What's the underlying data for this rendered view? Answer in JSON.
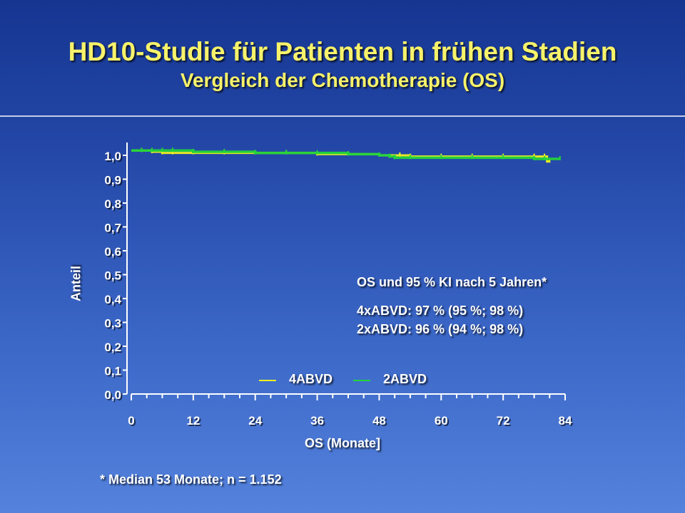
{
  "header": {
    "title": "HD10-Studie für Patienten in frühen Stadien",
    "subtitle": "Vergleich der Chemotherapie (OS)"
  },
  "annotation": {
    "title": "OS und 95 % KI nach 5 Jahren*",
    "line1": "4xABVD: 97 % (95 %; 98 %)",
    "line2": "2xABVD: 96 % (94 %; 98 %)"
  },
  "footnote": "* Median 53 Monate; n = 1.152",
  "legend": {
    "item1": "4ABVD",
    "item2": "2ABVD"
  },
  "colors": {
    "series_4abvd": "#f2f21c",
    "series_2abvd": "#22d43a",
    "text": "#ffffff",
    "title": "#f7f26a"
  },
  "chart_data": {
    "type": "line",
    "title": "HD10-Studie für Patienten in frühen Stadien",
    "subtitle": "Vergleich der Chemotherapie (OS)",
    "xlabel": "OS (Monate]",
    "ylabel": "Anteil",
    "xlim": [
      0,
      84
    ],
    "ylim": [
      0,
      1.0
    ],
    "x_ticks": [
      "0",
      "12",
      "24",
      "36",
      "48",
      "60",
      "72",
      "84"
    ],
    "y_ticks": [
      "0,0",
      "0,1",
      "0,2",
      "0,3",
      "0,4",
      "0,5",
      "0,6",
      "0,7",
      "0,8",
      "0,9",
      "1,0"
    ],
    "legend_position": "bottom-center",
    "series": [
      {
        "name": "4ABVD",
        "color": "#f2f21c",
        "x": [
          0,
          2,
          4,
          6,
          8,
          12,
          18,
          24,
          30,
          36,
          42,
          48,
          52,
          54,
          60,
          66,
          72,
          78,
          80,
          80.5,
          81
        ],
        "y": [
          1.02,
          1.02,
          1.015,
          1.01,
          1.01,
          1.01,
          1.01,
          1.01,
          1.01,
          1.005,
          1.005,
          1.0,
          1.0,
          0.995,
          0.995,
          0.995,
          0.995,
          0.995,
          0.995,
          0.975,
          0.975
        ]
      },
      {
        "name": "2ABVD",
        "color": "#22d43a",
        "x": [
          0,
          2,
          4,
          6,
          8,
          12,
          18,
          24,
          30,
          36,
          42,
          48,
          50,
          51,
          54,
          60,
          66,
          72,
          78,
          80,
          83
        ],
        "y": [
          1.02,
          1.02,
          1.02,
          1.02,
          1.02,
          1.015,
          1.015,
          1.01,
          1.01,
          1.01,
          1.005,
          1.0,
          0.995,
          0.99,
          0.99,
          0.99,
          0.99,
          0.99,
          0.985,
          0.985,
          0.985
        ]
      }
    ]
  }
}
